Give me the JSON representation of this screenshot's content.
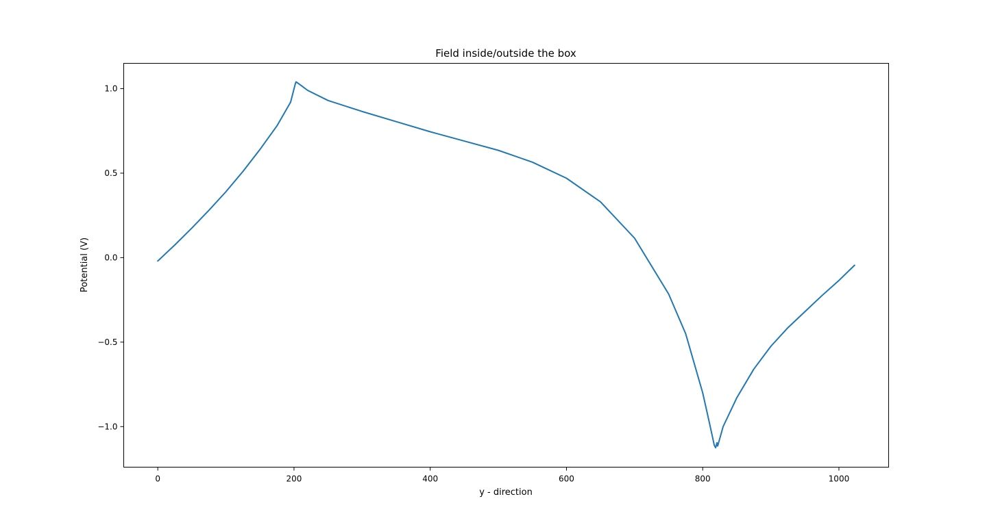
{
  "chart_data": {
    "type": "line",
    "title": "Field inside/outside the box",
    "xlabel": "y - direction",
    "ylabel": "Potential (V)",
    "xlim": [
      -50,
      1073
    ],
    "ylim": [
      -1.24,
      1.15
    ],
    "xticks": [
      0,
      200,
      400,
      600,
      800,
      1000
    ],
    "xtick_labels": [
      "0",
      "200",
      "400",
      "600",
      "800",
      "1000"
    ],
    "yticks": [
      -1.0,
      -0.5,
      0.0,
      0.5,
      1.0
    ],
    "ytick_labels": [
      "−1.0",
      "−0.5",
      "0.0",
      "0.5",
      "1.0"
    ],
    "grid": false,
    "series": [
      {
        "color": "#1f77b4",
        "points": [
          [
            0,
            -0.02
          ],
          [
            25,
            0.075
          ],
          [
            50,
            0.175
          ],
          [
            75,
            0.28
          ],
          [
            100,
            0.39
          ],
          [
            125,
            0.51
          ],
          [
            150,
            0.64
          ],
          [
            175,
            0.78
          ],
          [
            195,
            0.92
          ],
          [
            202,
            1.03
          ],
          [
            203,
            1.04
          ],
          [
            205,
            1.035
          ],
          [
            210,
            1.02
          ],
          [
            220,
            0.99
          ],
          [
            250,
            0.93
          ],
          [
            300,
            0.865
          ],
          [
            350,
            0.805
          ],
          [
            400,
            0.745
          ],
          [
            450,
            0.69
          ],
          [
            500,
            0.635
          ],
          [
            550,
            0.565
          ],
          [
            600,
            0.47
          ],
          [
            650,
            0.33
          ],
          [
            700,
            0.115
          ],
          [
            750,
            -0.215
          ],
          [
            775,
            -0.45
          ],
          [
            800,
            -0.8
          ],
          [
            810,
            -0.98
          ],
          [
            817,
            -1.11
          ],
          [
            819,
            -1.125
          ],
          [
            821,
            -1.095
          ],
          [
            822,
            -1.115
          ],
          [
            830,
            -1.0
          ],
          [
            850,
            -0.83
          ],
          [
            875,
            -0.66
          ],
          [
            900,
            -0.525
          ],
          [
            925,
            -0.415
          ],
          [
            950,
            -0.32
          ],
          [
            975,
            -0.225
          ],
          [
            1000,
            -0.135
          ],
          [
            1023,
            -0.045
          ]
        ]
      }
    ]
  }
}
